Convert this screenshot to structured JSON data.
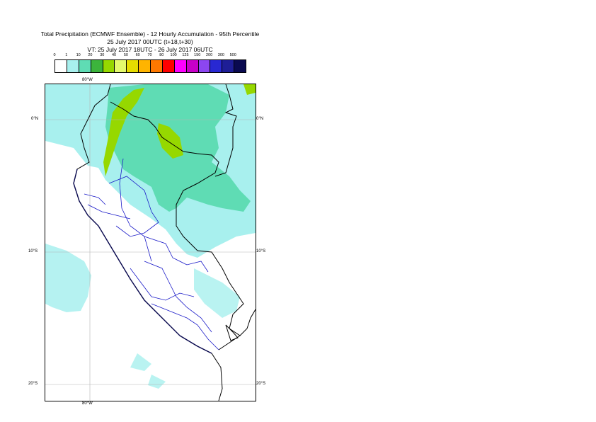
{
  "title": {
    "line1": "Total Precipitation (ECMWF Ensemble) - 12 Hourly Accumulation - 95th Percentile",
    "line2": "25 July 2017 00UTC (t+18,t+30)",
    "line3": "VT: 25 July 2017 18UTC - 26 July 2017 06UTC"
  },
  "legend": {
    "labels": [
      "0",
      "1",
      "10",
      "20",
      "30",
      "40",
      "50",
      "60",
      "70",
      "80",
      "100",
      "125",
      "150",
      "200",
      "300",
      "500"
    ],
    "colors": [
      "#ffffff",
      "#a8f0ee",
      "#5fdcb4",
      "#3cb43c",
      "#96d800",
      "#e4fa6e",
      "#e6dc00",
      "#ffb400",
      "#ff7800",
      "#ff0000",
      "#ff00ff",
      "#c800c8",
      "#8c46f0",
      "#2828d2",
      "#1e1e96",
      "#0a0a50"
    ]
  },
  "map": {
    "lon_labels": {
      "top": "80°W",
      "bottom": "80°W"
    },
    "lat_labels": [
      "0°N",
      "10°S",
      "20°S"
    ],
    "colors": {
      "land_border": "#000000",
      "admin_border": "#1a1ac8",
      "coast": "#0a0a50",
      "light_precip": "#a8f0ee",
      "medium_precip": "#5fdcb4",
      "heavy_precip": "#96d800"
    }
  }
}
